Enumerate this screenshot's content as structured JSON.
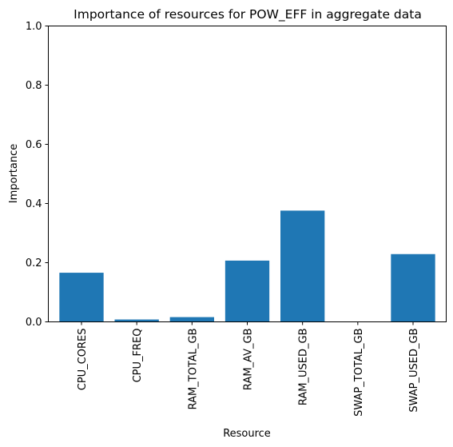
{
  "chart_data": {
    "type": "bar",
    "title": "Importance of resources for POW_EFF in aggregate data",
    "xlabel": "Resource",
    "ylabel": "Importance",
    "categories": [
      "CPU_CORES",
      "CPU_FREQ",
      "RAM_TOTAL_GB",
      "RAM_AV_GB",
      "RAM_USED_GB",
      "SWAP_TOTAL_GB",
      "SWAP_USED_GB"
    ],
    "values": [
      0.166,
      0.008,
      0.016,
      0.207,
      0.376,
      0.0,
      0.229
    ],
    "ylim": [
      0,
      1.0
    ],
    "yticks": [
      "0.0",
      "0.2",
      "0.4",
      "0.6",
      "0.8",
      "1.0"
    ],
    "bar_color": "#1f77b4",
    "grid": false,
    "legend": "none"
  }
}
